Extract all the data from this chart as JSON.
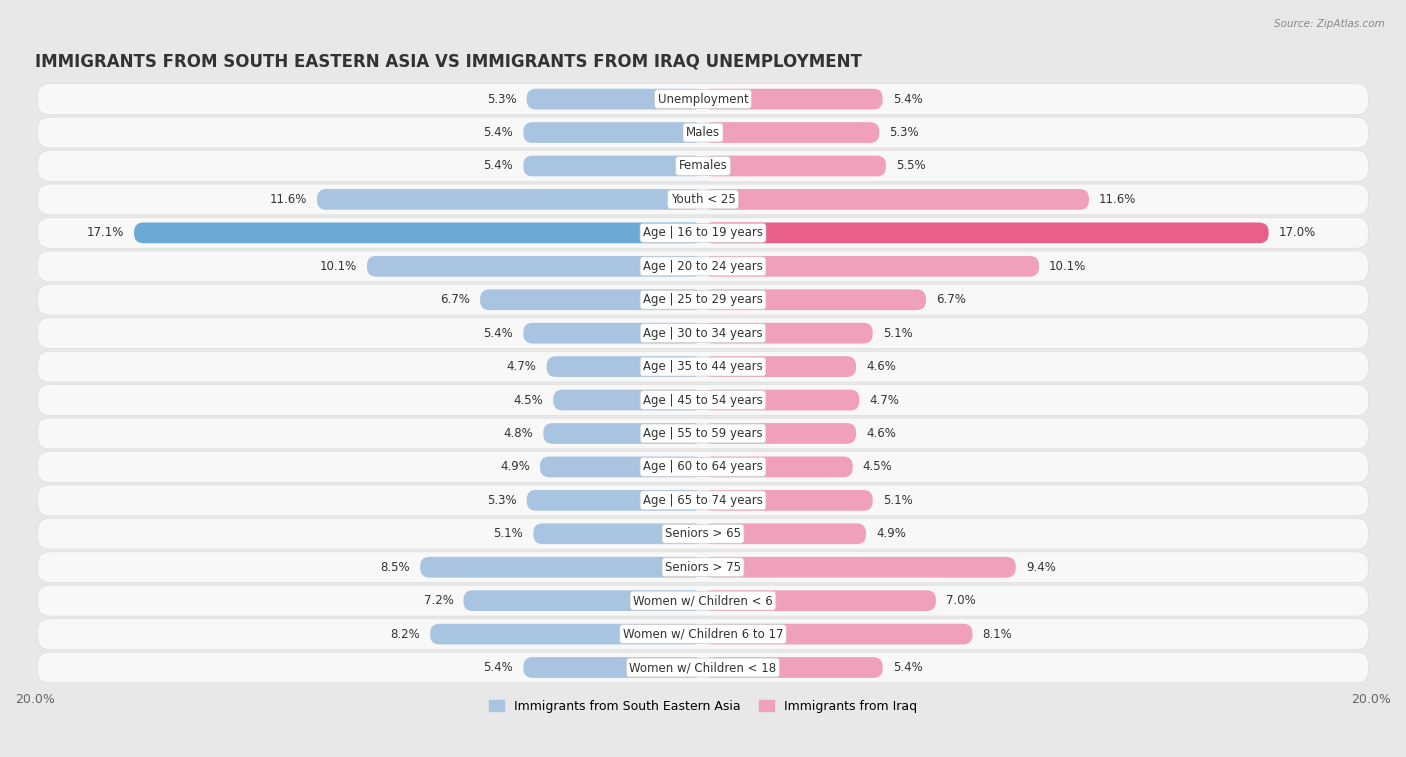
{
  "title": "IMMIGRANTS FROM SOUTH EASTERN ASIA VS IMMIGRANTS FROM IRAQ UNEMPLOYMENT",
  "source": "Source: ZipAtlas.com",
  "categories": [
    "Unemployment",
    "Males",
    "Females",
    "Youth < 25",
    "Age | 16 to 19 years",
    "Age | 20 to 24 years",
    "Age | 25 to 29 years",
    "Age | 30 to 34 years",
    "Age | 35 to 44 years",
    "Age | 45 to 54 years",
    "Age | 55 to 59 years",
    "Age | 60 to 64 years",
    "Age | 65 to 74 years",
    "Seniors > 65",
    "Seniors > 75",
    "Women w/ Children < 6",
    "Women w/ Children 6 to 17",
    "Women w/ Children < 18"
  ],
  "left_values": [
    5.3,
    5.4,
    5.4,
    11.6,
    17.1,
    10.1,
    6.7,
    5.4,
    4.7,
    4.5,
    4.8,
    4.9,
    5.3,
    5.1,
    8.5,
    7.2,
    8.2,
    5.4
  ],
  "right_values": [
    5.4,
    5.3,
    5.5,
    11.6,
    17.0,
    10.1,
    6.7,
    5.1,
    4.6,
    4.7,
    4.6,
    4.5,
    5.1,
    4.9,
    9.4,
    7.0,
    8.1,
    5.4
  ],
  "left_color": "#a8c4e0",
  "right_color": "#f0a0b8",
  "highlight_left_color": "#6aaad4",
  "highlight_right_color": "#e8608a",
  "highlight_rows": [
    4
  ],
  "xlim": 20.0,
  "background_color": "#e8e8e8",
  "row_light": "#f5f5f5",
  "row_white": "#ffffff",
  "legend_left": "Immigrants from South Eastern Asia",
  "legend_right": "Immigrants from Iraq",
  "title_fontsize": 12,
  "label_fontsize": 8.5,
  "value_fontsize": 8.5,
  "axis_label_fontsize": 9
}
